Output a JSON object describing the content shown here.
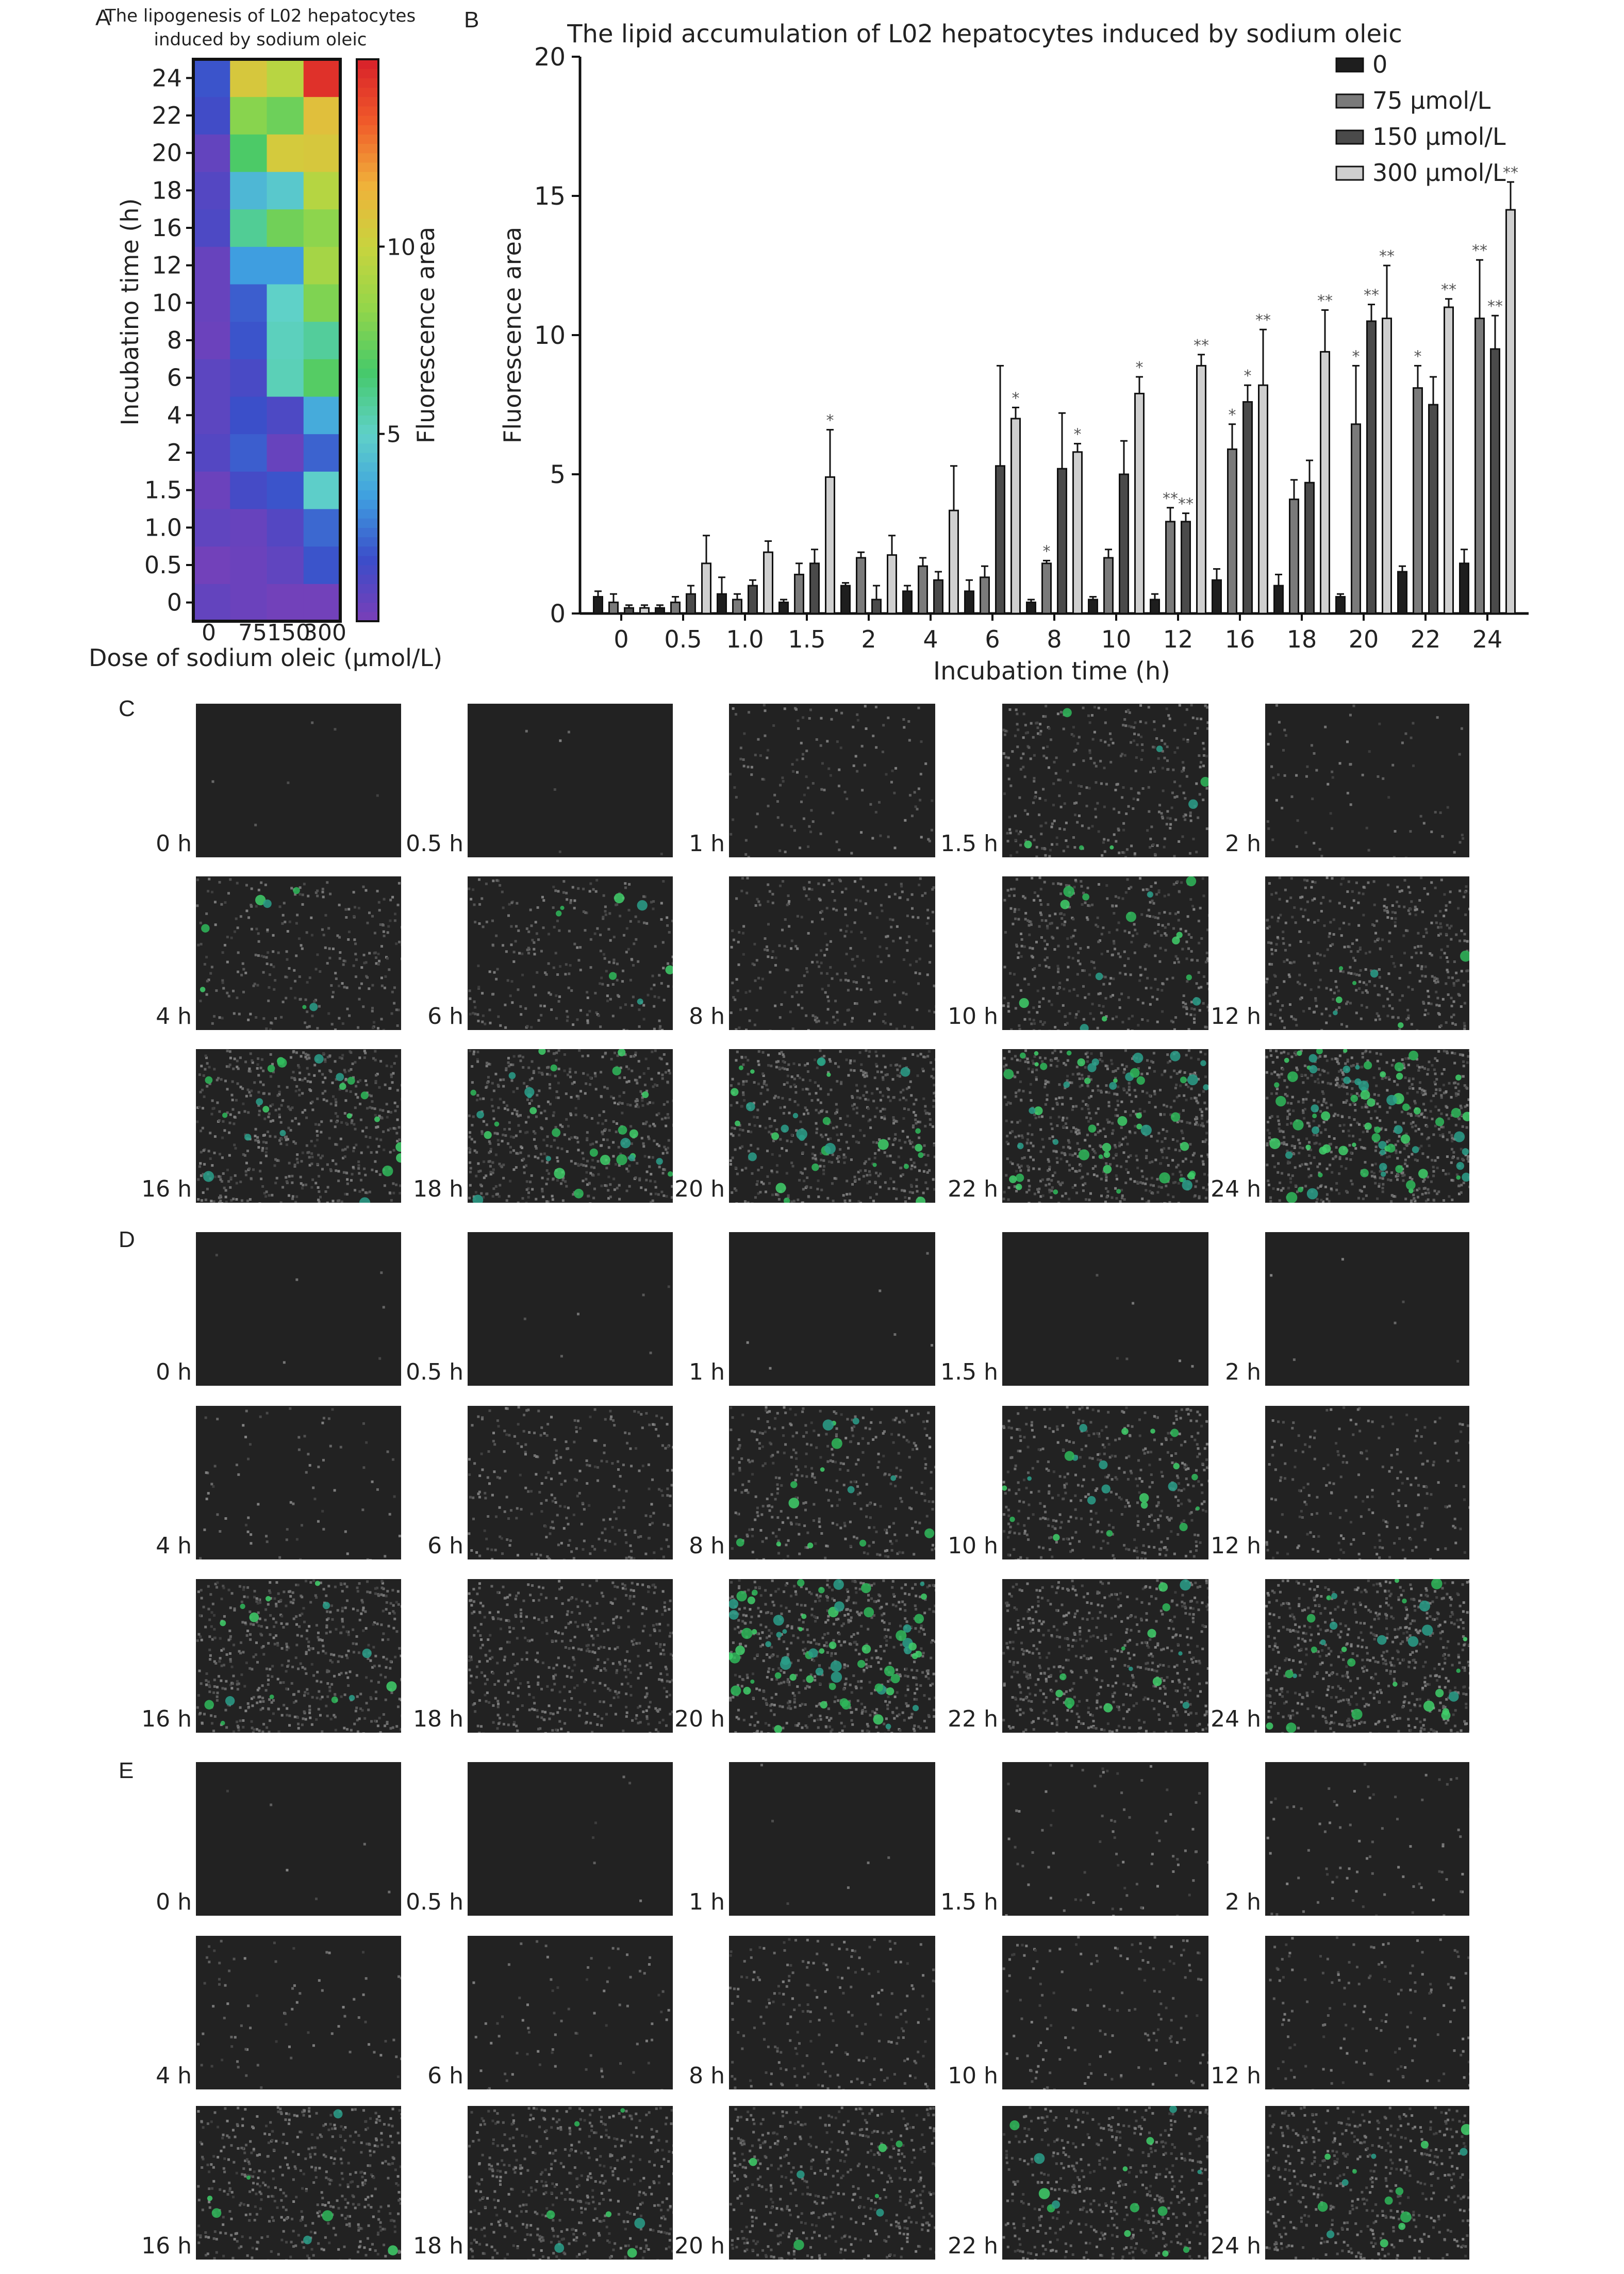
{
  "panels": {
    "a": "A",
    "b": "B",
    "c": "C",
    "d": "D",
    "e": "E"
  },
  "heatmap": {
    "title_line1": "The lipogenesis of L02 hepatocytes",
    "title_line2": "induced by sodium oleic",
    "ylabel": "Incubatino time (h)",
    "xlabel": "Dose of sodium oleic (μmol/L)",
    "x_ticks": [
      "0",
      "75",
      "150",
      "300"
    ],
    "y_ticks": [
      "0",
      "0.5",
      "1.0",
      "1.5",
      "2",
      "4",
      "6",
      "8",
      "10",
      "12",
      "16",
      "18",
      "20",
      "22",
      "24"
    ],
    "colorbar_label": "Fluorescence area",
    "colorbar_ticks": [
      "5",
      "10"
    ],
    "colorbar_tick_values": [
      5,
      10
    ],
    "colorbar_range": [
      0,
      15
    ],
    "colors": [
      "#7a3fb8",
      "#3b4dc9",
      "#3fa0e0",
      "#5fd1c8",
      "#46c96a",
      "#93d64a",
      "#c8d43e",
      "#f0b13a",
      "#f05a2a",
      "#d8202a"
    ]
  },
  "barchart": {
    "title": "The lipid accumulation of L02 hepatocytes induced by sodium oleic",
    "xlabel": "Incubation time (h)",
    "ylabel": "Fluorescence area",
    "legend": [
      "0",
      "75 μmol/L",
      "150 μmol/L",
      "300 μmol/L"
    ],
    "colors": [
      "#1e1e1e",
      "#7a7a7a",
      "#4a4a4a",
      "#cfcfcf"
    ]
  },
  "chart_data": [
    {
      "type": "heatmap",
      "title": "The lipogenesis of L02 hepatocytes induced by sodium oleic",
      "xlabel": "Dose of sodium oleic (μmol/L)",
      "ylabel": "Incubatino time (h)",
      "x": [
        "0",
        "75",
        "150",
        "300"
      ],
      "y": [
        "0",
        "0.5",
        "1.0",
        "1.5",
        "2",
        "4",
        "6",
        "8",
        "10",
        "12",
        "16",
        "18",
        "20",
        "22",
        "24"
      ],
      "values": [
        [
          0.6,
          0.4,
          0.2,
          0.2
        ],
        [
          0.2,
          0.4,
          0.7,
          1.8
        ],
        [
          0.7,
          0.5,
          1.0,
          2.2
        ],
        [
          0.4,
          1.4,
          1.8,
          4.9
        ],
        [
          1.0,
          2.0,
          0.5,
          2.1
        ],
        [
          0.8,
          1.7,
          1.2,
          3.7
        ],
        [
          0.8,
          1.3,
          5.3,
          7.0
        ],
        [
          0.4,
          1.8,
          5.2,
          5.8
        ],
        [
          0.5,
          2.0,
          5.0,
          7.9
        ],
        [
          0.5,
          3.3,
          3.3,
          8.9
        ],
        [
          1.2,
          5.9,
          7.6,
          8.2
        ],
        [
          1.0,
          4.1,
          4.7,
          9.4
        ],
        [
          0.6,
          6.8,
          10.5,
          10.6
        ],
        [
          1.5,
          8.1,
          7.5,
          11.0
        ],
        [
          1.8,
          10.6,
          9.5,
          14.5
        ]
      ],
      "colorbar": {
        "label": "Fluorescence area",
        "ticks": [
          5,
          10
        ],
        "range": [
          0,
          15
        ]
      }
    },
    {
      "type": "bar",
      "title": "The lipid accumulation of L02 hepatocytes induced by sodium oleic",
      "xlabel": "Incubation time (h)",
      "ylabel": "Fluorescence area",
      "categories": [
        "0",
        "0.5",
        "1.0",
        "1.5",
        "2",
        "4",
        "6",
        "8",
        "10",
        "12",
        "16",
        "18",
        "20",
        "22",
        "24"
      ],
      "ylim": [
        0,
        20
      ],
      "yticks": [
        0,
        5,
        10,
        15,
        20
      ],
      "legend_position": "top-right",
      "series": [
        {
          "name": "0",
          "values": [
            0.6,
            0.2,
            0.7,
            0.4,
            1.0,
            0.8,
            0.8,
            0.4,
            0.5,
            0.5,
            1.2,
            1.0,
            0.6,
            1.5,
            1.8
          ],
          "errors": [
            0.2,
            0.1,
            0.6,
            0.1,
            0.1,
            0.2,
            0.4,
            0.1,
            0.1,
            0.2,
            0.4,
            0.4,
            0.1,
            0.2,
            0.5
          ],
          "marks": [
            "",
            "",
            "",
            "",
            "",
            "",
            "",
            "",
            "",
            "",
            "",
            "",
            "",
            "",
            ""
          ]
        },
        {
          "name": "75 μmol/L",
          "values": [
            0.4,
            0.4,
            0.5,
            1.4,
            2.0,
            1.7,
            1.3,
            1.8,
            2.0,
            3.3,
            5.9,
            4.1,
            6.8,
            8.1,
            10.6
          ],
          "errors": [
            0.3,
            0.2,
            0.2,
            0.4,
            0.2,
            0.3,
            0.4,
            0.1,
            0.3,
            0.5,
            0.9,
            0.7,
            2.1,
            0.8,
            2.1
          ],
          "marks": [
            "",
            "",
            "",
            "",
            "",
            "",
            "",
            "*",
            "",
            "**",
            "*",
            "",
            "*",
            "*",
            "**"
          ]
        },
        {
          "name": "150 μmol/L",
          "values": [
            0.2,
            0.7,
            1.0,
            1.8,
            0.5,
            1.2,
            5.3,
            5.2,
            5.0,
            3.3,
            7.6,
            4.7,
            10.5,
            7.5,
            9.5
          ],
          "errors": [
            0.1,
            0.3,
            0.2,
            0.5,
            0.5,
            0.3,
            3.6,
            2.0,
            1.2,
            0.3,
            0.6,
            0.8,
            0.6,
            1.0,
            1.2
          ],
          "marks": [
            "",
            "",
            "",
            "",
            "",
            "",
            "",
            "",
            "",
            "**",
            "*",
            "",
            "**",
            "",
            "**"
          ]
        },
        {
          "name": "300 μmol/L",
          "values": [
            0.2,
            1.8,
            2.2,
            4.9,
            2.1,
            3.7,
            7.0,
            5.8,
            7.9,
            8.9,
            8.2,
            9.4,
            10.6,
            11.0,
            14.5
          ],
          "errors": [
            0.1,
            1.0,
            0.4,
            1.7,
            0.7,
            1.6,
            0.4,
            0.3,
            0.6,
            0.4,
            2.0,
            1.5,
            1.9,
            0.3,
            1.0
          ],
          "marks": [
            "",
            "",
            "",
            "*",
            "",
            "",
            "*",
            "*",
            "*",
            "**",
            "**",
            "**",
            "**",
            "**",
            "**"
          ]
        }
      ]
    }
  ],
  "micrographs": {
    "time_labels": [
      "0 h",
      "0.5 h",
      "1 h",
      "1.5 h",
      "2 h",
      "4 h",
      "6 h",
      "8 h",
      "10 h",
      "12 h",
      "16 h",
      "18 h",
      "20 h",
      "22 h",
      "24 h"
    ],
    "speckle_levels": {
      "c": [
        0.0,
        0.0,
        0.2,
        0.5,
        0.1,
        0.4,
        0.4,
        0.4,
        0.6,
        0.6,
        0.8,
        0.8,
        0.8,
        0.9,
        1.0
      ],
      "d": [
        0.0,
        0.0,
        0.0,
        0.0,
        0.0,
        0.1,
        0.4,
        0.5,
        0.6,
        0.3,
        0.8,
        0.7,
        0.9,
        0.8,
        0.9
      ],
      "e": [
        0.0,
        0.0,
        0.0,
        0.1,
        0.1,
        0.1,
        0.1,
        0.3,
        0.2,
        0.2,
        0.7,
        0.7,
        0.7,
        0.7,
        0.7
      ]
    },
    "green_levels": {
      "c": [
        0.0,
        0.0,
        0.0,
        0.1,
        0.0,
        0.1,
        0.1,
        0.0,
        0.2,
        0.1,
        0.3,
        0.4,
        0.4,
        0.7,
        1.0
      ],
      "d": [
        0.0,
        0.0,
        0.0,
        0.0,
        0.0,
        0.0,
        0.0,
        0.2,
        0.3,
        0.0,
        0.2,
        0.0,
        0.9,
        0.2,
        0.4
      ],
      "e": [
        0.0,
        0.0,
        0.0,
        0.0,
        0.0,
        0.0,
        0.0,
        0.0,
        0.0,
        0.0,
        0.1,
        0.1,
        0.1,
        0.2,
        0.2
      ]
    }
  }
}
